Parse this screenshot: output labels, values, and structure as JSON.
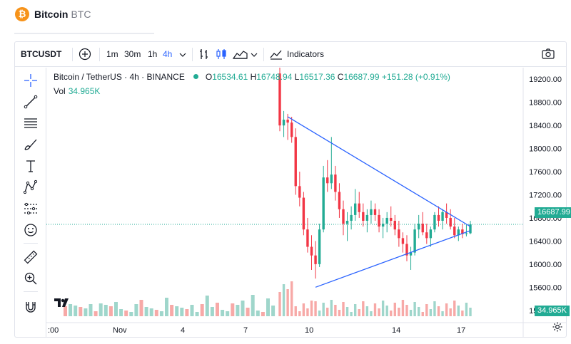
{
  "page": {
    "title": "Bitcoin",
    "ticker": "BTC"
  },
  "toolbar": {
    "symbol": "BTCUSDT",
    "intervals": [
      "1m",
      "30m",
      "1h",
      "4h"
    ],
    "active_interval": "4h",
    "indicators_label": "Indicators"
  },
  "legend": {
    "symbol_text": "Bitcoin / TetherUS · 4h · BINANCE",
    "o_label": "O",
    "o_value": "16534.61",
    "h_label": "H",
    "h_value": "16748.94",
    "l_label": "L",
    "l_value": "16517.36",
    "c_label": "C",
    "c_value": "16687.99",
    "change": "+151.28 (+0.91%)",
    "vol_label": "Vol",
    "vol_value": "34.965K"
  },
  "colors": {
    "up": "#22ab94",
    "down": "#f23645",
    "up_vol": "#9fd6cb",
    "down_vol": "#f7a9a7",
    "trendline": "#2962ff",
    "accent": "#2962ff"
  },
  "chart_data": {
    "type": "candlestick",
    "y_ticks": [
      "19200.00",
      "18800.00",
      "18400.00",
      "18000.00",
      "17600.00",
      "17200.00",
      "16800.00",
      "16400.00",
      "16000.00",
      "15600.00",
      "15200.00"
    ],
    "x_ticks": [
      ":00",
      "Nov",
      "4",
      "7",
      "10",
      "14",
      "17"
    ],
    "last_price": "16687.99",
    "last_volume": "34.965K",
    "ylim": [
      15000,
      19400
    ],
    "trendlines": [
      {
        "from": [
          "Nov 8",
          18550
        ],
        "to": [
          "Nov 17",
          16650
        ]
      },
      {
        "from": [
          "Nov 9",
          15600
        ],
        "to": [
          "Nov 17",
          16580
        ]
      }
    ],
    "candles": [
      [
        19300,
        19450,
        18300,
        18400
      ],
      [
        18400,
        18650,
        18200,
        18500
      ],
      [
        18500,
        18600,
        18150,
        18450
      ],
      [
        18450,
        18550,
        18100,
        18200
      ],
      [
        18200,
        18350,
        17200,
        17350
      ],
      [
        17350,
        17600,
        17000,
        17150
      ],
      [
        17150,
        17250,
        16500,
        16600
      ],
      [
        16600,
        16800,
        16200,
        16300
      ],
      [
        16300,
        16500,
        15900,
        16150
      ],
      [
        16150,
        16400,
        15750,
        16000
      ],
      [
        16000,
        16700,
        15950,
        16600
      ],
      [
        16600,
        17700,
        16550,
        17500
      ],
      [
        17500,
        17800,
        17250,
        17400
      ],
      [
        17400,
        18200,
        17300,
        17550
      ],
      [
        17550,
        17700,
        17100,
        17250
      ],
      [
        17250,
        17400,
        16800,
        16950
      ],
      [
        16950,
        17100,
        16500,
        16700
      ],
      [
        16700,
        16900,
        16400,
        16750
      ],
      [
        16750,
        17000,
        16600,
        16850
      ],
      [
        16850,
        17300,
        16750,
        17050
      ],
      [
        17050,
        17250,
        16800,
        16900
      ],
      [
        16900,
        17050,
        16650,
        16750
      ],
      [
        16750,
        16950,
        16550,
        16850
      ],
      [
        16850,
        17100,
        16700,
        16950
      ],
      [
        16950,
        17050,
        16750,
        16850
      ],
      [
        16850,
        16950,
        16550,
        16650
      ],
      [
        16650,
        16800,
        16450,
        16700
      ],
      [
        16700,
        16900,
        16550,
        16800
      ],
      [
        16800,
        17000,
        16650,
        16750
      ],
      [
        16750,
        16850,
        16500,
        16600
      ],
      [
        16600,
        16750,
        16300,
        16450
      ],
      [
        16450,
        16550,
        16200,
        16350
      ],
      [
        16350,
        16500,
        16050,
        16150
      ],
      [
        16150,
        16300,
        15900,
        16200
      ],
      [
        16200,
        16700,
        16150,
        16600
      ],
      [
        16600,
        16850,
        16450,
        16700
      ],
      [
        16700,
        16900,
        16500,
        16550
      ],
      [
        16550,
        16700,
        16350,
        16450
      ],
      [
        16450,
        16650,
        16300,
        16600
      ],
      [
        16600,
        16900,
        16550,
        16850
      ],
      [
        16850,
        17000,
        16650,
        16750
      ],
      [
        16750,
        16950,
        16600,
        16900
      ],
      [
        16900,
        17050,
        16700,
        16800
      ],
      [
        16800,
        16950,
        16600,
        16650
      ],
      [
        16650,
        16800,
        16450,
        16500
      ],
      [
        16500,
        16650,
        16400,
        16600
      ],
      [
        16600,
        16700,
        16450,
        16520
      ],
      [
        16520,
        16680,
        16480,
        16534
      ],
      [
        16534,
        16749,
        16517,
        16688
      ]
    ]
  }
}
